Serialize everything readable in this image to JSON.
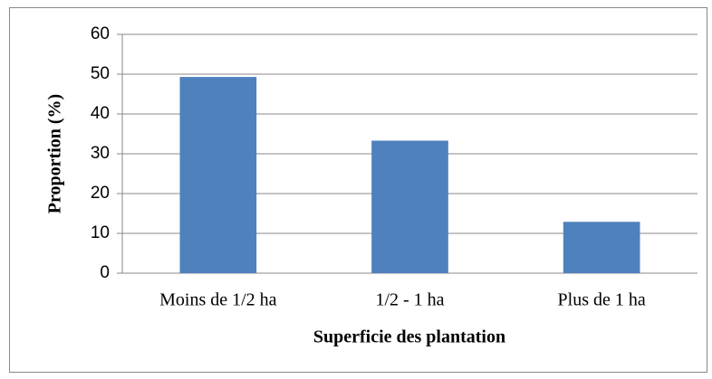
{
  "chart_data": {
    "type": "bar",
    "xlabel": "Superficie des plantation",
    "ylabel": "Proportion (%)",
    "categories": [
      "Moins de 1/2 ha",
      "1/2 - 1 ha",
      "Plus de 1 ha"
    ],
    "values": [
      49.3,
      33.3,
      12.9
    ],
    "color": "#4f81bd",
    "ylim": [
      0,
      60
    ],
    "yticks": [
      0,
      10,
      20,
      30,
      40,
      50,
      60
    ],
    "grid": true
  }
}
